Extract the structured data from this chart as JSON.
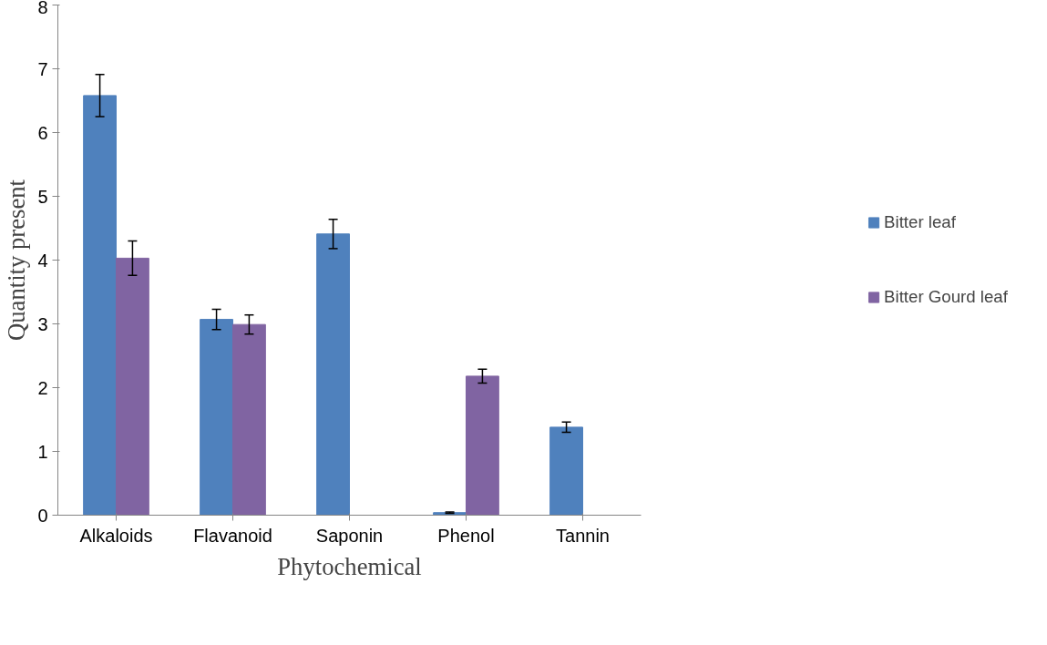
{
  "chart_data": {
    "type": "bar",
    "xlabel": "Phytochemical",
    "ylabel": "Quantity present",
    "categories": [
      "Alkaloids",
      "Flavanoid",
      "Saponin",
      "Phenol",
      "Tannin"
    ],
    "series": [
      {
        "name": "Bitter leaf",
        "color": "#4f81bd",
        "values": [
          6.58,
          3.07,
          4.41,
          0.04,
          1.38
        ],
        "errors": [
          0.33,
          0.16,
          0.23,
          0.01,
          0.08
        ]
      },
      {
        "name": "Bitter Gourd leaf",
        "color": "#8064a2",
        "values": [
          4.03,
          2.99,
          0,
          2.18,
          0
        ],
        "errors": [
          0.27,
          0.15,
          null,
          0.11,
          null
        ]
      }
    ],
    "ylim": [
      0,
      8
    ],
    "yticks": [
      0,
      1,
      2,
      3,
      4,
      5,
      6,
      7,
      8
    ],
    "grid": false,
    "legend": "right"
  }
}
